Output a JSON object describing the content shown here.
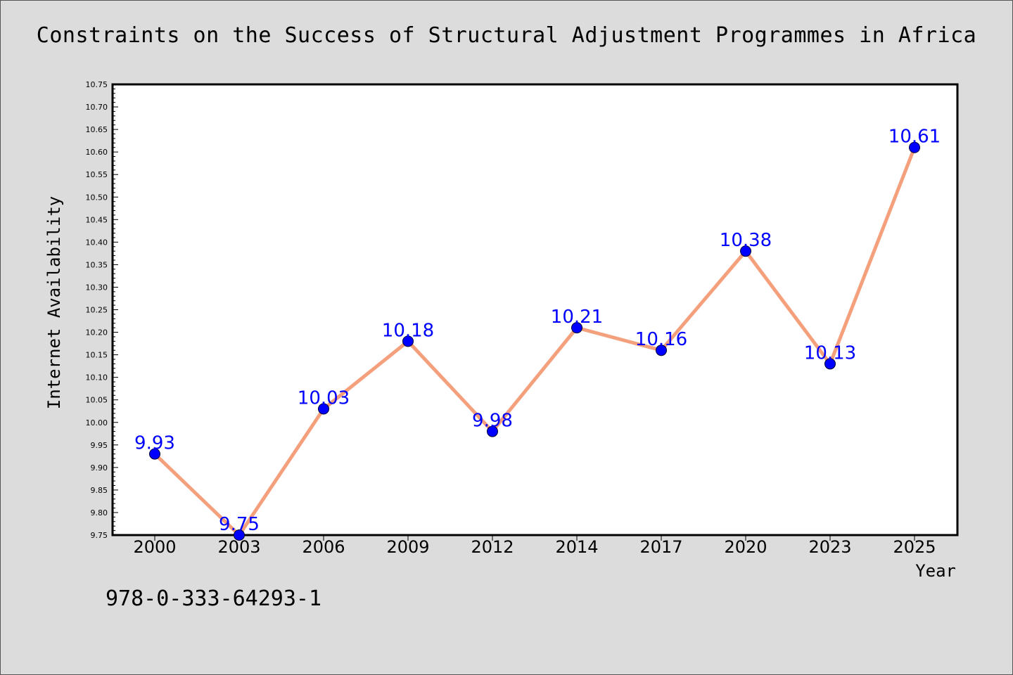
{
  "chart_data": {
    "type": "line",
    "title": "Constraints on the Success of Structural Adjustment Programmes in Africa",
    "xlabel": "Year",
    "ylabel": "Internet Availability",
    "categories": [
      "2000",
      "2003",
      "2006",
      "2009",
      "2012",
      "2014",
      "2017",
      "2020",
      "2023",
      "2025"
    ],
    "series": [
      {
        "values": [
          9.93,
          9.75,
          10.03,
          10.18,
          9.98,
          10.21,
          10.16,
          10.38,
          10.13,
          10.61
        ],
        "data_labels": [
          "9.93",
          "9.75",
          "10.03",
          "10.18",
          "9.98",
          "10.21",
          "10.16",
          "10.38",
          "10.13",
          "10.61"
        ],
        "line_color": "#f4a07c",
        "marker_color": "#0000ff"
      }
    ],
    "ylim": [
      9.75,
      10.75
    ],
    "yticks": [
      "9.75",
      "9.80",
      "9.85",
      "9.90",
      "9.95",
      "10.00",
      "10.05",
      "10.10",
      "10.15",
      "10.20",
      "10.25",
      "10.30",
      "10.35",
      "10.40",
      "10.45",
      "10.50",
      "10.55",
      "10.60",
      "10.65",
      "10.70",
      "10.75"
    ],
    "grid": false,
    "legend": "none"
  },
  "isbn": "978-0-333-64293-1",
  "colors": {
    "background": "#dcdcdc",
    "plot_area": "#ffffff",
    "label": "#0000ff"
  }
}
